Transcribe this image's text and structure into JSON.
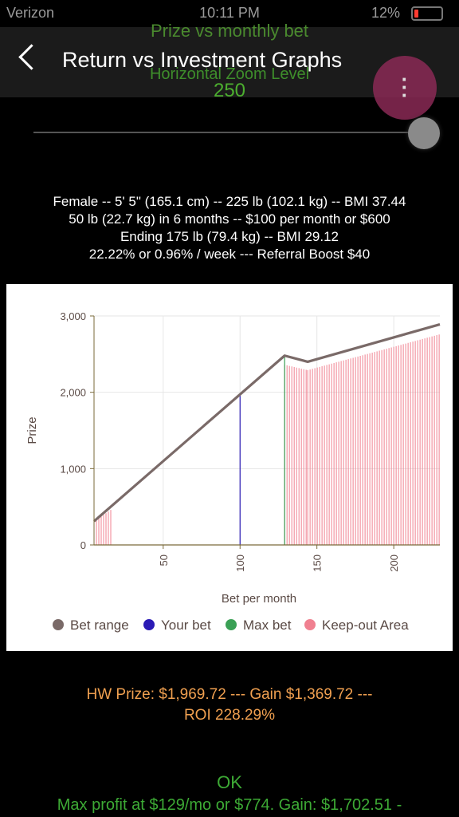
{
  "status": {
    "carrier": "Verizon",
    "time": "10:11 PM",
    "battery": "12%"
  },
  "header": {
    "title": "Return vs Investment Graphs",
    "overlay_title": "Prize vs monthly bet",
    "menu_icon": "more-vert-icon"
  },
  "zoom": {
    "label": "Horizontal Zoom Level",
    "value": "250",
    "level": 1.0
  },
  "summary": [
    "Female -- 5' 5\" (165.1 cm) -- 225 lb (102.1 kg) -- BMI 37.44",
    "50 lb (22.7 kg) in 6 months -- $100 per month or $600",
    "Ending 175 lb (79.4 kg) -- BMI 29.12",
    "22.22% or 0.96% / week --- Referral Boost $40"
  ],
  "chart_data": {
    "type": "line",
    "xlabel": "Bet per month",
    "ylabel": "Prize",
    "xlim": [
      5,
      230
    ],
    "ylim": [
      0,
      3000
    ],
    "x_ticks": [
      "50",
      "100",
      "150",
      "200"
    ],
    "x_tick_values": [
      50,
      100,
      150,
      200
    ],
    "y_ticks": [
      "0",
      "1,000",
      "2,000",
      "3,000"
    ],
    "y_tick_values": [
      0,
      1000,
      2000,
      3000
    ],
    "grid": true,
    "series": [
      {
        "name": "Bet range",
        "color": "#7a6a68",
        "x": [
          5,
          129,
          144,
          230
        ],
        "y": [
          310,
          2480,
          2400,
          2890
        ]
      }
    ],
    "your_bet": {
      "name": "Your bet",
      "x": 100,
      "y": 1969.72,
      "color": "#2a1ab5"
    },
    "max_bet": {
      "name": "Max bet",
      "x": 129,
      "y": 2480,
      "color": "#3aa055"
    },
    "keep_out": {
      "name": "Keep-out Area",
      "color": "#f08090",
      "regions": [
        {
          "x": [
            5,
            16
          ],
          "y": [
            310,
            460
          ]
        },
        {
          "x": [
            129,
            144,
            230
          ],
          "y": [
            2360,
            2290,
            2760
          ]
        }
      ]
    },
    "legend": [
      "Bet range",
      "Your bet",
      "Max bet",
      "Keep-out Area"
    ],
    "legend_colors": [
      "#7a6a68",
      "#2a1ab5",
      "#3aa055",
      "#f08090"
    ],
    "legend_position": "bottom"
  },
  "results": {
    "line1": "HW Prize: $1,969.72 --- Gain $1,369.72 ---",
    "line2": "ROI 228.29%",
    "ok": "OK",
    "max_profit": "Max profit at $129/mo or $774. Gain: $1,702.51 -"
  }
}
